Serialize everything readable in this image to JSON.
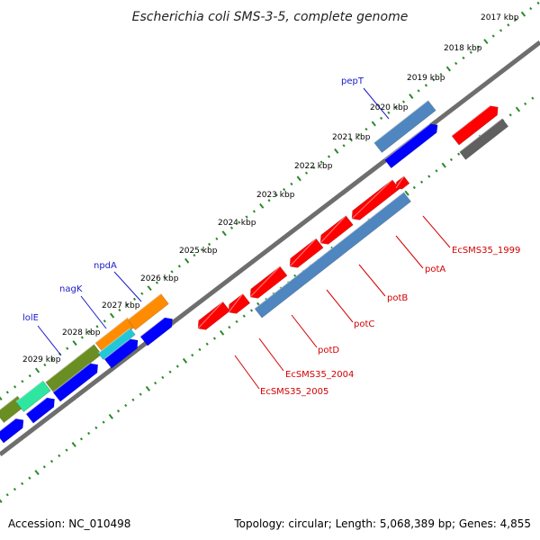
{
  "title": "Escherichia coli SMS-3-5, complete genome",
  "footer": {
    "accession": "Accession: NC_010498",
    "summary": "Topology: circular; Length: 5,068,389 bp; Genes: 4,855"
  },
  "colors": {
    "background": "#ffffff",
    "backbone": "#6e6e6e",
    "tick_dots": "#2a8a2a",
    "blue_strand": "#0000ff",
    "red_strand": "#ff0000",
    "steelblue_cds": "#4f86c0",
    "olive_cds": "#6b8e23",
    "mint_cds": "#2ee6a0",
    "cyan_cds": "#20c8d8",
    "orange_cds": "#ff8c00",
    "grey_cds": "#606060",
    "label_blue": "#1a1ac8",
    "label_red": "#d40000"
  },
  "ruler_ticks": [
    "2017 kbp",
    "2018 kbp",
    "2019 kbp",
    "2020 kbp",
    "2021 kbp",
    "2022 kbp",
    "2023 kbp",
    "2024 kbp",
    "2025 kbp",
    "2026 kbp",
    "2027 kbp",
    "2028 kbp",
    "2029 kbp"
  ],
  "top_labels": [
    "pepT",
    "npdA",
    "nagK",
    "lolE"
  ],
  "bottom_labels": [
    "EcSMS35_1999",
    "potA",
    "potB",
    "potC",
    "potD",
    "EcSMS35_2004",
    "EcSMS35_2005"
  ]
}
